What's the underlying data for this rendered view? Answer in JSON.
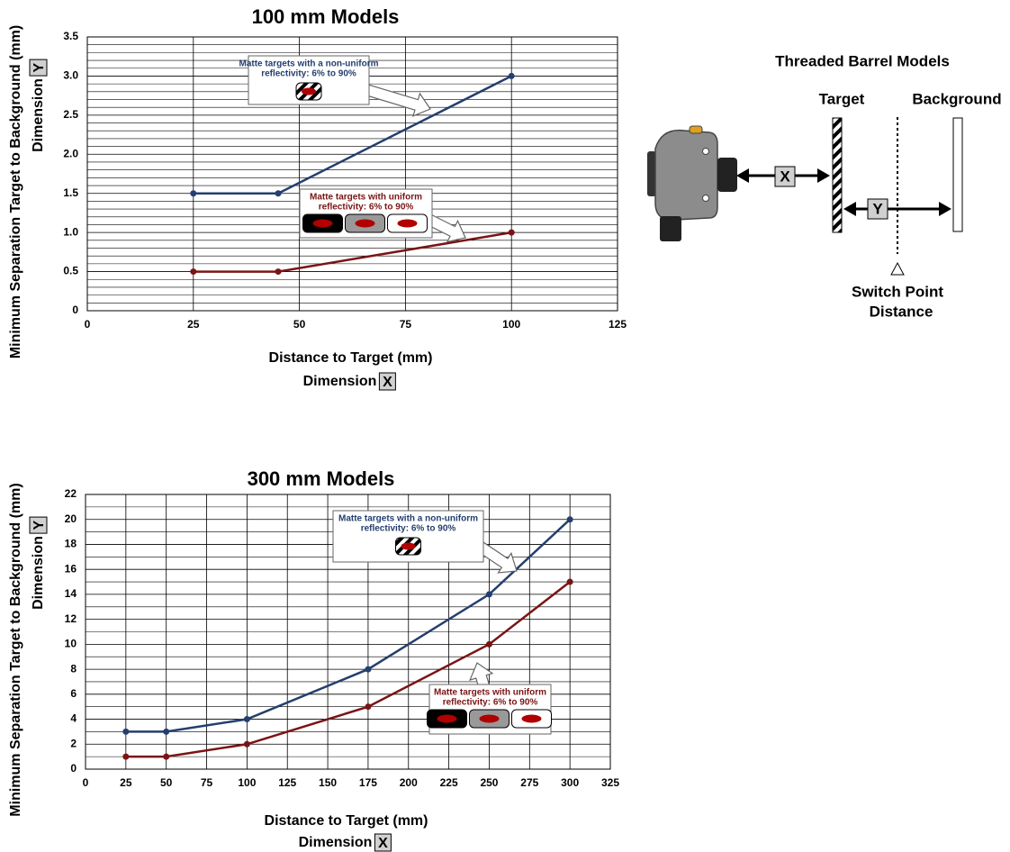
{
  "chart_data": [
    {
      "type": "line",
      "title": "100 mm Models",
      "xlabel": "Distance to Target (mm)",
      "xlabel2": "Dimension",
      "xlabel_symbol": "X",
      "ylabel": "Minimum Separation Target to Background (mm)",
      "ylabel2": "Dimension",
      "ylabel_symbol": "Y",
      "x": [
        25,
        45,
        100
      ],
      "series": [
        {
          "name": "Matte targets with a non-uniform reflectivity",
          "color": "#233f6e",
          "values": [
            1.5,
            1.5,
            3.0
          ]
        },
        {
          "name": "Matte targets with uniform reflectivity",
          "color": "#7a1414",
          "values": [
            0.5,
            0.5,
            1.0
          ]
        }
      ],
      "xlim": [
        0,
        125
      ],
      "xticks": [
        0,
        25,
        50,
        75,
        100,
        125
      ],
      "ylim": [
        0,
        3.5
      ],
      "yticks": [
        0,
        0.5,
        {
          "value": 1,
          "label": "1.0"
        },
        1.5,
        {
          "value": 2,
          "label": "2.0"
        },
        2.5,
        {
          "value": 3,
          "label": "3.0"
        },
        3.5
      ],
      "grid": true,
      "annotations": [
        [
          "Matte targets with a non-uniform",
          "reflectivity: 6% to 90%"
        ],
        [
          "Matte targets with uniform",
          "reflectivity: 6% to 90%"
        ]
      ]
    },
    {
      "type": "line",
      "title": "300 mm Models",
      "xlabel": "Distance to Target (mm)",
      "xlabel2": "Dimension",
      "xlabel_symbol": "X",
      "ylabel": "Minimum Separation Target to Background (mm)",
      "ylabel2": "Dimension",
      "ylabel_symbol": "Y",
      "x": [
        25,
        50,
        100,
        175,
        250,
        300
      ],
      "series": [
        {
          "name": "Matte targets with a non-uniform reflectivity",
          "color": "#233f6e",
          "values": [
            3,
            3,
            4,
            8,
            14,
            20
          ]
        },
        {
          "name": "Matte targets with uniform reflectivity",
          "color": "#7a1414",
          "values": [
            1,
            1,
            2,
            5,
            10,
            15
          ]
        }
      ],
      "xlim": [
        0,
        325
      ],
      "xticks": [
        0,
        25,
        50,
        75,
        100,
        125,
        150,
        175,
        200,
        225,
        250,
        275,
        300,
        325
      ],
      "ylim": [
        0,
        22
      ],
      "yticks": [
        0,
        2,
        4,
        6,
        8,
        10,
        12,
        14,
        16,
        18,
        20,
        22
      ],
      "grid": true,
      "annotations": [
        [
          "Matte targets with a non-uniform",
          "reflectivity: 6% to 90%"
        ],
        [
          "Matte targets with uniform",
          "reflectivity: 6% to 90%"
        ]
      ]
    }
  ],
  "diagram": {
    "title": "Threaded Barrel Models",
    "target": "Target",
    "background": "Background",
    "x_symbol": "X",
    "y_symbol": "Y",
    "switch_point": [
      "Switch Point",
      "Distance"
    ]
  }
}
